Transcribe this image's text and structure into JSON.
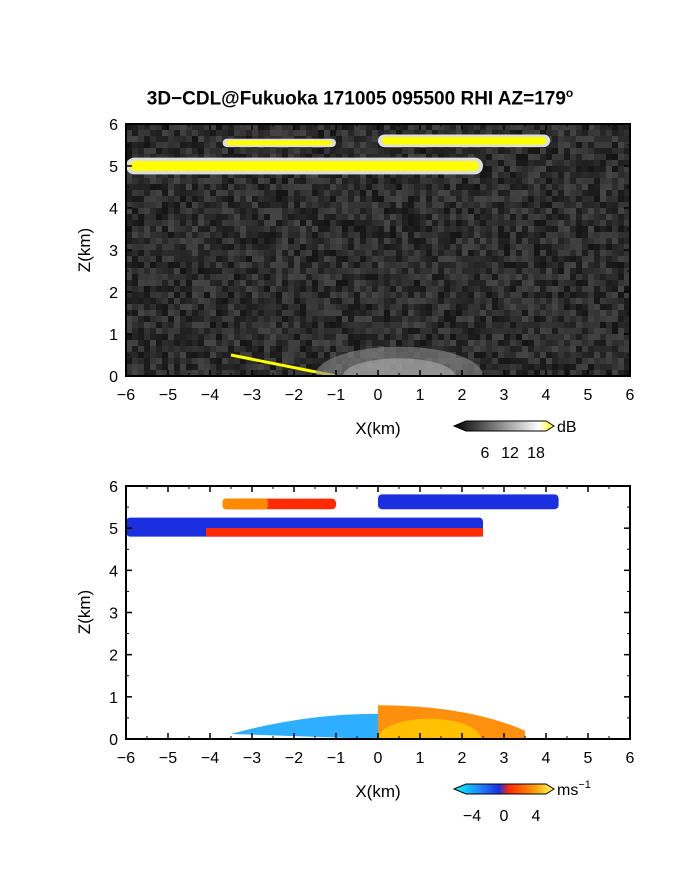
{
  "title": {
    "text": "3D−CDL@Fukuoka 171005 095500 RHI AZ=179",
    "degree_symbol": "o"
  },
  "colors": {
    "yellow": "#ffff00",
    "blue": "#1a2fe0",
    "cyan": "#22aaff",
    "red": "#ff2a00",
    "orange": "#ff8a00"
  },
  "chart_data": [
    {
      "type": "heatmap",
      "panel": "top",
      "quantity": "backscatter intensity",
      "xlabel": "X(km)",
      "ylabel": "Z(km)",
      "xlim": [
        -6,
        6
      ],
      "ylim": [
        0,
        6
      ],
      "xticks": [
        "−6",
        "−5",
        "−4",
        "−3",
        "−2",
        "−1",
        "0",
        "1",
        "2",
        "3",
        "4",
        "5",
        "6"
      ],
      "yticks": [
        "0",
        "1",
        "2",
        "3",
        "4",
        "5",
        "6"
      ],
      "colorbar": {
        "unit": "dB",
        "ticks": [
          "6",
          "12",
          "18"
        ],
        "range": [
          0,
          21
        ]
      },
      "features": [
        {
          "label": "cloud layer",
          "x_range": [
            -6.0,
            2.5
          ],
          "z_range": [
            4.8,
            5.2
          ],
          "color": "yellow"
        },
        {
          "label": "cloud layer",
          "x_range": [
            -3.7,
            -1.0
          ],
          "z_range": [
            5.45,
            5.65
          ],
          "color": "yellow"
        },
        {
          "label": "cloud layer",
          "x_range": [
            0.0,
            4.1
          ],
          "z_range": [
            5.45,
            5.75
          ],
          "color": "yellow"
        },
        {
          "label": "ground return",
          "x_range": [
            -3.5,
            -1.0
          ],
          "z_range": [
            0.0,
            0.5
          ],
          "color": "yellow"
        },
        {
          "label": "boundary layer",
          "x_range": [
            -1.5,
            2.5
          ],
          "z_range": [
            0.0,
            0.7
          ],
          "color": "gray"
        }
      ]
    },
    {
      "type": "heatmap",
      "panel": "bottom",
      "quantity": "Doppler velocity",
      "xlabel": "X(km)",
      "ylabel": "Z(km)",
      "xlim": [
        -6,
        6
      ],
      "ylim": [
        0,
        6
      ],
      "xticks": [
        "−6",
        "−5",
        "−4",
        "−3",
        "−2",
        "−1",
        "0",
        "1",
        "2",
        "3",
        "4",
        "5",
        "6"
      ],
      "yticks": [
        "0",
        "1",
        "2",
        "3",
        "4",
        "5",
        "6"
      ],
      "colorbar": {
        "unit": "ms",
        "unit_exponent": "−1",
        "ticks": [
          "−4",
          "0",
          "4"
        ],
        "range": [
          -6,
          6
        ]
      },
      "features": [
        {
          "label": "cloud layer",
          "x_range": [
            -6.0,
            2.5
          ],
          "z_range": [
            4.8,
            5.25
          ],
          "velocity": -5
        },
        {
          "label": "cloud layer",
          "x_range": [
            -3.7,
            -1.0
          ],
          "z_range": [
            5.45,
            5.7
          ],
          "velocity": 2
        },
        {
          "label": "cloud layer",
          "x_range": [
            0.0,
            4.3
          ],
          "z_range": [
            5.45,
            5.8
          ],
          "velocity": -5
        },
        {
          "label": "low layer",
          "x_range": [
            -3.5,
            0.0
          ],
          "z_range": [
            0.0,
            0.6
          ],
          "velocity": -3
        },
        {
          "label": "low layer",
          "x_range": [
            0.0,
            3.5
          ],
          "z_range": [
            0.0,
            0.8
          ],
          "velocity": 4
        }
      ]
    }
  ]
}
